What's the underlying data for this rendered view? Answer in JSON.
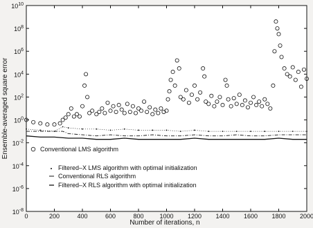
{
  "chart_data": {
    "type": "line",
    "title": "",
    "xlabel": "Number of iterations, n",
    "ylabel": "Ensemble-averaged square error",
    "xlim": [
      0,
      2000
    ],
    "ylim_log10": [
      -8,
      10
    ],
    "yscale": "log",
    "grid": false,
    "legend_placement": "lower-left",
    "x_ticks": [
      "0",
      "200",
      "400",
      "600",
      "800",
      "1000",
      "1200",
      "1400",
      "1600",
      "1800",
      "2000"
    ],
    "y_ticks": [
      {
        "base": "10",
        "exp": "10"
      },
      {
        "base": "10",
        "exp": "8"
      },
      {
        "base": "10",
        "exp": "6"
      },
      {
        "base": "10",
        "exp": "4"
      },
      {
        "base": "10",
        "exp": "2"
      },
      {
        "base": "10",
        "exp": "0"
      },
      {
        "base": "10",
        "exp": "-2"
      },
      {
        "base": "10",
        "exp": "-4"
      },
      {
        "base": "10",
        "exp": "-6"
      },
      {
        "base": "10",
        "exp": "-8"
      }
    ],
    "series": [
      {
        "name": "Conventional LMS algorithm",
        "style": "circles",
        "x": [
          0,
          50,
          100,
          150,
          200,
          240,
          260,
          280,
          300,
          320,
          340,
          360,
          380,
          400,
          415,
          425,
          435,
          450,
          470,
          500,
          520,
          540,
          560,
          580,
          600,
          620,
          640,
          660,
          680,
          700,
          720,
          740,
          760,
          780,
          800,
          820,
          840,
          860,
          880,
          900,
          920,
          940,
          960,
          980,
          1000,
          1010,
          1020,
          1030,
          1045,
          1060,
          1075,
          1090,
          1100,
          1120,
          1140,
          1160,
          1180,
          1200,
          1220,
          1240,
          1260,
          1270,
          1280,
          1300,
          1320,
          1340,
          1360,
          1380,
          1400,
          1420,
          1430,
          1440,
          1460,
          1480,
          1500,
          1520,
          1540,
          1560,
          1580,
          1600,
          1620,
          1640,
          1660,
          1680,
          1700,
          1720,
          1740,
          1760,
          1770,
          1780,
          1790,
          1800,
          1810,
          1820,
          1840,
          1860,
          1880,
          1900,
          1920,
          1940,
          1960,
          1980,
          2000
        ],
        "y_log10": [
          0.0,
          -0.2,
          -0.3,
          -0.4,
          -0.4,
          -0.3,
          0.0,
          0.2,
          0.5,
          1.0,
          0.3,
          0.5,
          0.3,
          1.2,
          3.0,
          4.0,
          2.0,
          0.6,
          0.8,
          0.5,
          0.7,
          1.0,
          0.6,
          1.5,
          0.8,
          1.2,
          0.7,
          1.3,
          0.9,
          0.6,
          1.4,
          0.7,
          1.2,
          0.6,
          1.0,
          0.8,
          1.6,
          0.7,
          1.1,
          0.5,
          0.9,
          0.6,
          1.0,
          0.7,
          0.8,
          1.8,
          2.5,
          3.5,
          4.2,
          3.0,
          5.2,
          4.5,
          2.0,
          1.8,
          2.6,
          1.5,
          2.2,
          3.0,
          1.8,
          2.4,
          4.5,
          3.8,
          1.6,
          1.4,
          2.1,
          1.2,
          1.6,
          2.0,
          1.3,
          3.5,
          3.0,
          1.8,
          1.2,
          1.9,
          1.4,
          2.2,
          1.3,
          1.7,
          1.1,
          1.5,
          2.0,
          1.3,
          1.6,
          1.2,
          1.8,
          1.4,
          1.0,
          3.0,
          6.0,
          8.6,
          8.0,
          7.5,
          6.5,
          5.5,
          4.5,
          4.0,
          3.8,
          4.6,
          3.5,
          4.2,
          2.9,
          4.4,
          3.6
        ]
      },
      {
        "name": "Filtered–X LMS algorithm with optimal initialization",
        "style": "dots",
        "x": [
          0,
          100,
          200,
          260,
          300,
          400,
          500,
          600,
          700,
          800,
          900,
          1000,
          1100,
          1200,
          1300,
          1400,
          1500,
          1600,
          1700,
          1800,
          1900,
          2000
        ],
        "y_log10": [
          -0.8,
          -0.9,
          -1.0,
          -0.6,
          -0.7,
          -0.8,
          -0.8,
          -0.9,
          -0.8,
          -0.9,
          -0.9,
          -0.9,
          -1.0,
          -0.9,
          -1.0,
          -1.0,
          -1.0,
          -1.0,
          -1.0,
          -1.0,
          -1.0,
          -1.0
        ]
      },
      {
        "name": "Conventional RLS algorithm",
        "style": "dash-dot",
        "x": [
          0,
          100,
          200,
          260,
          300,
          400,
          500,
          600,
          700,
          800,
          900,
          1000,
          1100,
          1200,
          1300,
          1400,
          1500,
          1600,
          1700,
          1800,
          1900,
          2000
        ],
        "y_log10": [
          -1.0,
          -1.0,
          -1.0,
          -1.0,
          -1.2,
          -1.3,
          -1.4,
          -1.3,
          -1.4,
          -1.4,
          -1.3,
          -1.4,
          -1.4,
          -1.3,
          -1.4,
          -1.4,
          -1.3,
          -1.4,
          -1.4,
          -1.3,
          -1.3,
          -1.3
        ]
      },
      {
        "name": "Filtered–X RLS algorithm with optimal initialization",
        "style": "solid",
        "x": [
          0,
          100,
          200,
          300,
          400,
          500,
          600,
          700,
          800,
          900,
          1000,
          1100,
          1200,
          1300,
          1400,
          1500,
          1600,
          1700,
          1800,
          1900,
          2000
        ],
        "y_log10": [
          -1.4,
          -1.5,
          -1.5,
          -1.6,
          -1.6,
          -1.7,
          -1.7,
          -1.6,
          -1.7,
          -1.7,
          -1.7,
          -1.7,
          -1.6,
          -1.7,
          -1.7,
          -1.7,
          -1.7,
          -1.7,
          -1.6,
          -1.7,
          -1.7
        ]
      }
    ]
  }
}
